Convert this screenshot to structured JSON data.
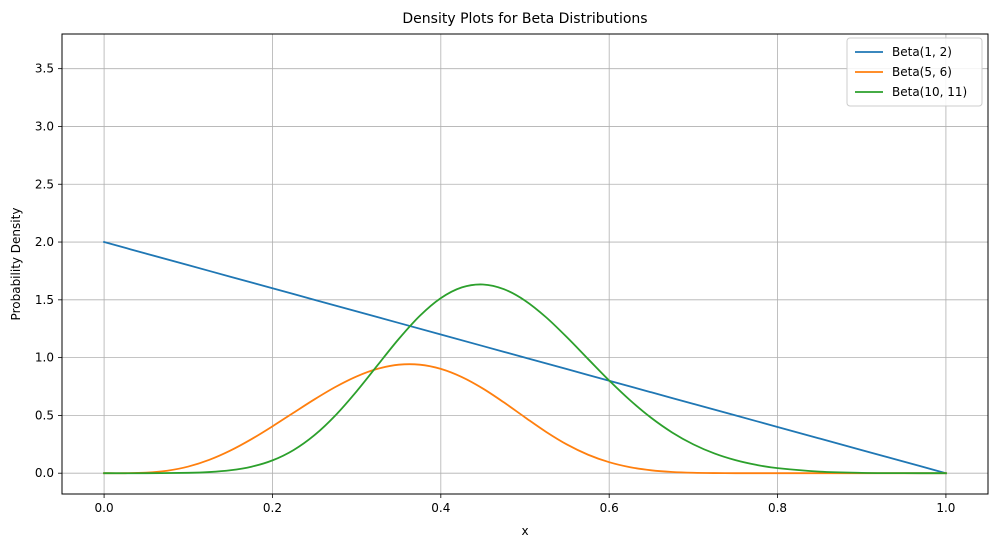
{
  "chart_data": {
    "type": "line",
    "title": "Density Plots for Beta Distributions",
    "xlabel": "x",
    "ylabel": "Probability Density",
    "xlim": [
      -0.05,
      1.05
    ],
    "ylim": [
      -0.18,
      3.8
    ],
    "xticks": [
      0.0,
      0.2,
      0.4,
      0.6,
      0.8,
      1.0
    ],
    "xtick_labels": [
      "0.0",
      "0.2",
      "0.4",
      "0.6",
      "0.8",
      "1.0"
    ],
    "yticks": [
      0.0,
      0.5,
      1.0,
      1.5,
      2.0,
      2.5,
      3.0,
      3.5
    ],
    "ytick_labels": [
      "0.0",
      "0.5",
      "1.0",
      "1.5",
      "2.0",
      "2.5",
      "3.0",
      "3.5"
    ],
    "grid": true,
    "legend_position": "top-right",
    "series": [
      {
        "name": "Beta(1, 2)",
        "color": "#1f77b4",
        "x": [
          0.0,
          0.05,
          0.1,
          0.15,
          0.2,
          0.25,
          0.3,
          0.35,
          0.4,
          0.45,
          0.5,
          0.55,
          0.6,
          0.65,
          0.7,
          0.75,
          0.8,
          0.85,
          0.9,
          0.95,
          1.0
        ],
        "y": [
          2.0,
          1.9,
          1.8,
          1.7,
          1.6,
          1.5,
          1.4,
          1.3,
          1.2,
          1.1,
          1.0,
          0.9,
          0.8,
          0.7,
          0.6,
          0.5,
          0.4,
          0.3,
          0.2,
          0.1,
          0.0
        ]
      },
      {
        "name": "Beta(5, 6)",
        "color": "#ff7f0e",
        "x": [
          0.0,
          0.025,
          0.05,
          0.075,
          0.1,
          0.125,
          0.15,
          0.175,
          0.2,
          0.225,
          0.25,
          0.275,
          0.3,
          0.325,
          0.35,
          0.375,
          0.4,
          0.425,
          0.45,
          0.475,
          0.5,
          0.525,
          0.55,
          0.575,
          0.6,
          0.625,
          0.65,
          0.675,
          0.7,
          0.725,
          0.75,
          0.775,
          0.8,
          0.825,
          0.85,
          0.875,
          0.9,
          0.925,
          0.95,
          0.975,
          1.0
        ],
        "y": [
          0.0,
          0.0001,
          0.0048,
          0.0214,
          0.0574,
          0.1157,
          0.1957,
          0.2941,
          0.4054,
          0.5229,
          0.6393,
          0.7467,
          0.8372,
          0.9034,
          0.9387,
          0.9389,
          0.9025,
          0.8318,
          0.7322,
          0.6123,
          0.4834,
          0.3579,
          0.2476,
          0.1597,
          0.0952,
          0.0516,
          0.025,
          0.0105,
          0.0037,
          0.001,
          0.0002,
          3e-05,
          0.0,
          0.0,
          0.0,
          0.0,
          0.0,
          0.0,
          0.0,
          0.0,
          0.0
        ]
      },
      {
        "name": "Beta(10, 11)",
        "color": "#2ca02c",
        "x": [
          0.0,
          0.05,
          0.1,
          0.125,
          0.15,
          0.175,
          0.2,
          0.225,
          0.25,
          0.275,
          0.3,
          0.325,
          0.35,
          0.375,
          0.4,
          0.425,
          0.45,
          0.475,
          0.5,
          0.525,
          0.55,
          0.575,
          0.6,
          0.625,
          0.65,
          0.675,
          0.7,
          0.725,
          0.75,
          0.775,
          0.8,
          0.85,
          0.9,
          0.95,
          1.0
        ],
        "y": [
          0.0,
          0.0,
          0.0034,
          0.0099,
          0.0251,
          0.0559,
          0.1109,
          0.1999,
          0.3299,
          0.5018,
          0.7088,
          0.9357,
          1.161,
          1.3611,
          1.5148,
          1.6077,
          1.6329,
          1.592,
          1.4934,
          1.3492,
          1.1748,
          0.9875,
          0.802,
          0.63,
          0.4785,
          0.3514,
          0.2494,
          0.1708,
          0.1128,
          0.0716,
          0.0436,
          0.0137,
          0.0031,
          0.0003,
          0.0
        ]
      }
    ]
  }
}
